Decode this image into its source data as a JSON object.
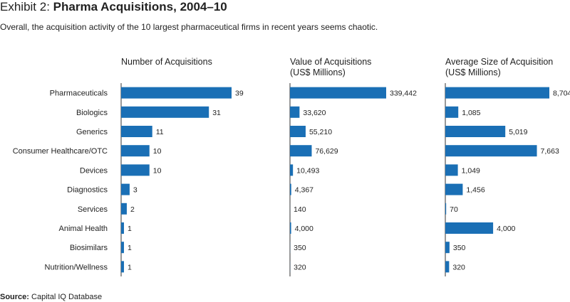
{
  "header": {
    "exhibit_label": "Exhibit 2: ",
    "title": "Pharma Acquisitions, 2004–10",
    "subtitle": "Overall, the acquisition activity of the 10 largest pharmaceutical firms in recent years seems chaotic."
  },
  "source": {
    "label": "Source:",
    "text": " Capital IQ Database"
  },
  "colors": {
    "bar": "#1a6fb5",
    "axis": "#333333",
    "text": "#222222"
  },
  "chart_data": {
    "type": "bar",
    "orientation": "horizontal",
    "categories": [
      "Pharmaceuticals",
      "Biologics",
      "Generics",
      "Consumer Healthcare/OTC",
      "Devices",
      "Diagnostics",
      "Services",
      "Animal Health",
      "Biosimilars",
      "Nutrition/Wellness"
    ],
    "panels": [
      {
        "title": [
          "Number of Acquisitions"
        ],
        "values": [
          39,
          31,
          11,
          10,
          10,
          3,
          2,
          1,
          1,
          1
        ],
        "labels": [
          "39",
          "31",
          "11",
          "10",
          "10",
          "3",
          "2",
          "1",
          "1",
          "1"
        ],
        "max": 39
      },
      {
        "title": [
          "Value of Acquisitions",
          "(US$ Millions)"
        ],
        "values": [
          339442,
          33620,
          55210,
          76629,
          10493,
          4367,
          140,
          4000,
          350,
          320
        ],
        "labels": [
          "339,442",
          "33,620",
          "55,210",
          "76,629",
          "10,493",
          "4,367",
          "140",
          "4,000",
          "350",
          "320"
        ],
        "max": 339442
      },
      {
        "title": [
          "Average Size of Acquisition",
          "(US$ Millions)"
        ],
        "values": [
          8704,
          1085,
          5019,
          7663,
          1049,
          1456,
          70,
          4000,
          350,
          320
        ],
        "labels": [
          "8,704",
          "1,085",
          "5,019",
          "7,663",
          "1,049",
          "1,456",
          "70",
          "4,000",
          "350",
          "320"
        ],
        "max": 8704
      }
    ]
  }
}
